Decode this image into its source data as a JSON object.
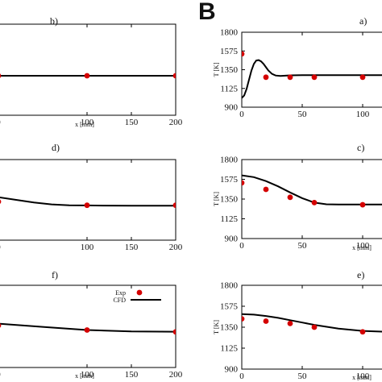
{
  "figure": {
    "section_label": "B"
  },
  "chart_data": [
    {
      "id": "b",
      "type": "line",
      "panel_label": "b)",
      "xlabel": "x [mm]",
      "ylabel": "",
      "xlim": [
        0,
        200
      ],
      "ylim": [
        900,
        1800
      ],
      "xticks": [
        "0",
        "100",
        "150",
        "200"
      ],
      "yticks": [],
      "series": [
        {
          "kind": "line",
          "x": [
            0,
            50,
            100,
            150,
            200
          ],
          "values": [
            1290,
            1290,
            1290,
            1290,
            1290
          ]
        },
        {
          "kind": "scatter",
          "x": [
            0,
            100,
            200
          ],
          "values": [
            1290,
            1290,
            1290
          ]
        }
      ]
    },
    {
      "id": "a",
      "type": "line",
      "panel_label": "a)",
      "xlabel": "",
      "ylabel": "T [K]",
      "xlim": [
        0,
        120
      ],
      "ylim": [
        900,
        1800
      ],
      "xticks": [
        "0",
        "50",
        "100"
      ],
      "yticks": [
        "900",
        "1125",
        "1350",
        "1575",
        "1800"
      ],
      "series": [
        {
          "kind": "line",
          "x": [
            0,
            2,
            4,
            6,
            8,
            10,
            12,
            14,
            16,
            18,
            20,
            22,
            25,
            28,
            32,
            36,
            40,
            50,
            60,
            70,
            80,
            100,
            120
          ],
          "values": [
            1010,
            1040,
            1120,
            1230,
            1340,
            1420,
            1460,
            1465,
            1450,
            1420,
            1380,
            1340,
            1300,
            1280,
            1275,
            1278,
            1282,
            1285,
            1285,
            1285,
            1285,
            1285,
            1285
          ]
        },
        {
          "kind": "scatter",
          "x": [
            0,
            20,
            40,
            60,
            100
          ],
          "values": [
            1540,
            1260,
            1260,
            1260,
            1260
          ]
        }
      ]
    },
    {
      "id": "d",
      "type": "line",
      "panel_label": "d)",
      "xlabel": "",
      "ylabel": "",
      "xlim": [
        0,
        200
      ],
      "ylim": [
        900,
        1800
      ],
      "xticks": [
        "0",
        "100",
        "150",
        "200"
      ],
      "yticks": [],
      "series": [
        {
          "kind": "line",
          "x": [
            0,
            20,
            40,
            60,
            80,
            100,
            120,
            150,
            200
          ],
          "values": [
            1380,
            1350,
            1320,
            1300,
            1290,
            1288,
            1286,
            1285,
            1285
          ]
        },
        {
          "kind": "scatter",
          "x": [
            0,
            100,
            200
          ],
          "values": [
            1330,
            1290,
            1290
          ]
        }
      ]
    },
    {
      "id": "c",
      "type": "line",
      "panel_label": "c)",
      "xlabel": "x [mm]",
      "ylabel": "T [K]",
      "xlim": [
        0,
        120
      ],
      "ylim": [
        900,
        1800
      ],
      "xticks": [
        "0",
        "50",
        "100"
      ],
      "yticks": [
        "900",
        "1125",
        "1350",
        "1575",
        "1800"
      ],
      "series": [
        {
          "kind": "line",
          "x": [
            0,
            10,
            20,
            30,
            40,
            50,
            60,
            70,
            80,
            100,
            120
          ],
          "values": [
            1620,
            1600,
            1555,
            1495,
            1425,
            1360,
            1310,
            1290,
            1288,
            1288,
            1288
          ]
        },
        {
          "kind": "scatter",
          "x": [
            0,
            20,
            40,
            60,
            100
          ],
          "values": [
            1535,
            1460,
            1370,
            1310,
            1285
          ]
        }
      ]
    },
    {
      "id": "f",
      "type": "line",
      "panel_label": "f)",
      "xlabel": "x [mm]",
      "ylabel": "",
      "xlim": [
        0,
        200
      ],
      "ylim": [
        900,
        1800
      ],
      "xticks": [
        "0",
        "100",
        "150",
        "200"
      ],
      "yticks": [],
      "legend": {
        "placement": "top-right",
        "entries": [
          "Exp",
          "CFD"
        ]
      },
      "series": [
        {
          "kind": "line",
          "x": [
            0,
            50,
            100,
            150,
            200
          ],
          "values": [
            1380,
            1345,
            1310,
            1295,
            1292
          ]
        },
        {
          "kind": "scatter",
          "x": [
            0,
            100,
            200
          ],
          "values": [
            1360,
            1310,
            1290
          ]
        }
      ]
    },
    {
      "id": "e",
      "type": "line",
      "panel_label": "e)",
      "xlabel": "x [mm]",
      "ylabel": "T [K]",
      "xlim": [
        0,
        120
      ],
      "ylim": [
        900,
        1800
      ],
      "xticks": [
        "0",
        "50",
        "100"
      ],
      "yticks": [
        "900",
        "1125",
        "1350",
        "1575",
        "1800"
      ],
      "series": [
        {
          "kind": "line",
          "x": [
            0,
            10,
            20,
            30,
            40,
            50,
            60,
            80,
            100,
            120
          ],
          "values": [
            1490,
            1485,
            1470,
            1450,
            1425,
            1400,
            1375,
            1335,
            1310,
            1300
          ]
        },
        {
          "kind": "scatter",
          "x": [
            0,
            20,
            40,
            60,
            100
          ],
          "values": [
            1440,
            1415,
            1390,
            1350,
            1300
          ]
        }
      ]
    }
  ],
  "colors": {
    "line": "#000000",
    "marker": "#d40000",
    "axis": "#000000"
  }
}
